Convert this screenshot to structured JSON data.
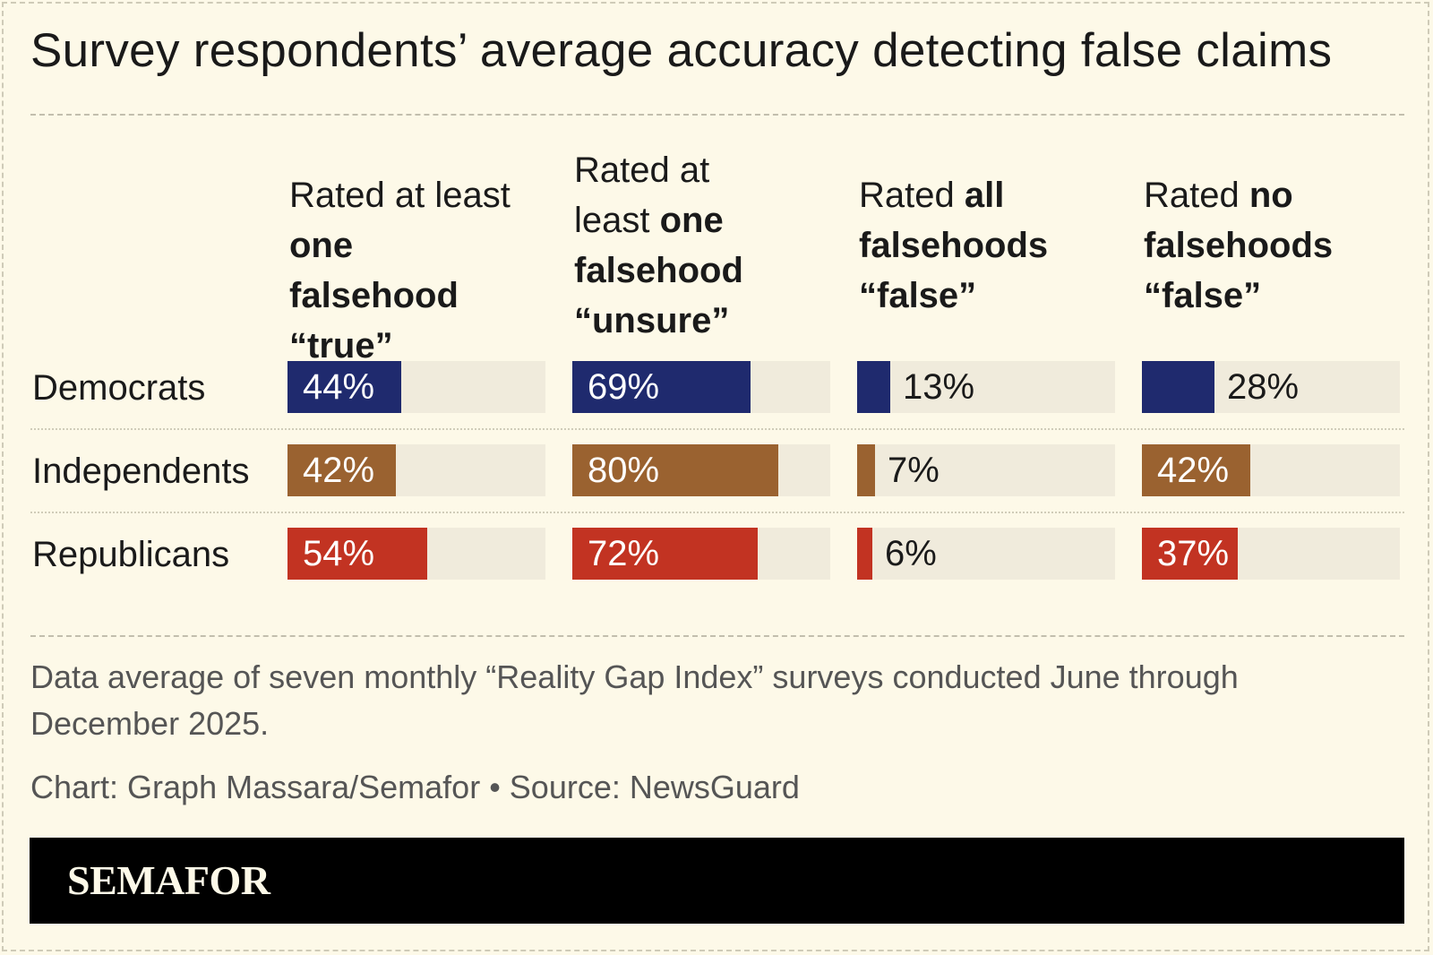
{
  "chart_data": {
    "type": "bar",
    "title": "Survey respondents’ average accuracy detecting false claims",
    "columns": [
      {
        "pre": "Rated at least",
        "bold": "one falsehood",
        "post": "“true”"
      },
      {
        "pre": "Rated at least",
        "bold": "one falsehood",
        "post": "“unsure”"
      },
      {
        "pre": "Rated",
        "bold": "all falsehoods",
        "post": "“false”"
      },
      {
        "pre": "Rated",
        "bold": "no falsehoods",
        "post": "“false”"
      }
    ],
    "categories": [
      "Democrats",
      "Independents",
      "Republicans"
    ],
    "colors": [
      "#1f2a6e",
      "#9a6230",
      "#c23322"
    ],
    "values": [
      [
        44,
        69,
        13,
        28
      ],
      [
        42,
        80,
        7,
        42
      ],
      [
        54,
        72,
        6,
        37
      ]
    ],
    "labels": [
      [
        "44%",
        "69%",
        "13%",
        "28%"
      ],
      [
        "42%",
        "80%",
        "7%",
        "42%"
      ],
      [
        "54%",
        "72%",
        "6%",
        "37%"
      ]
    ],
    "ylim": [
      0,
      100
    ]
  },
  "note": "Data average of seven monthly “Reality Gap Index” surveys conducted June through December 2025.",
  "credit": "Chart: Graph Massara/Semafor • Source: NewsGuard",
  "brand": "SEMAFOR"
}
